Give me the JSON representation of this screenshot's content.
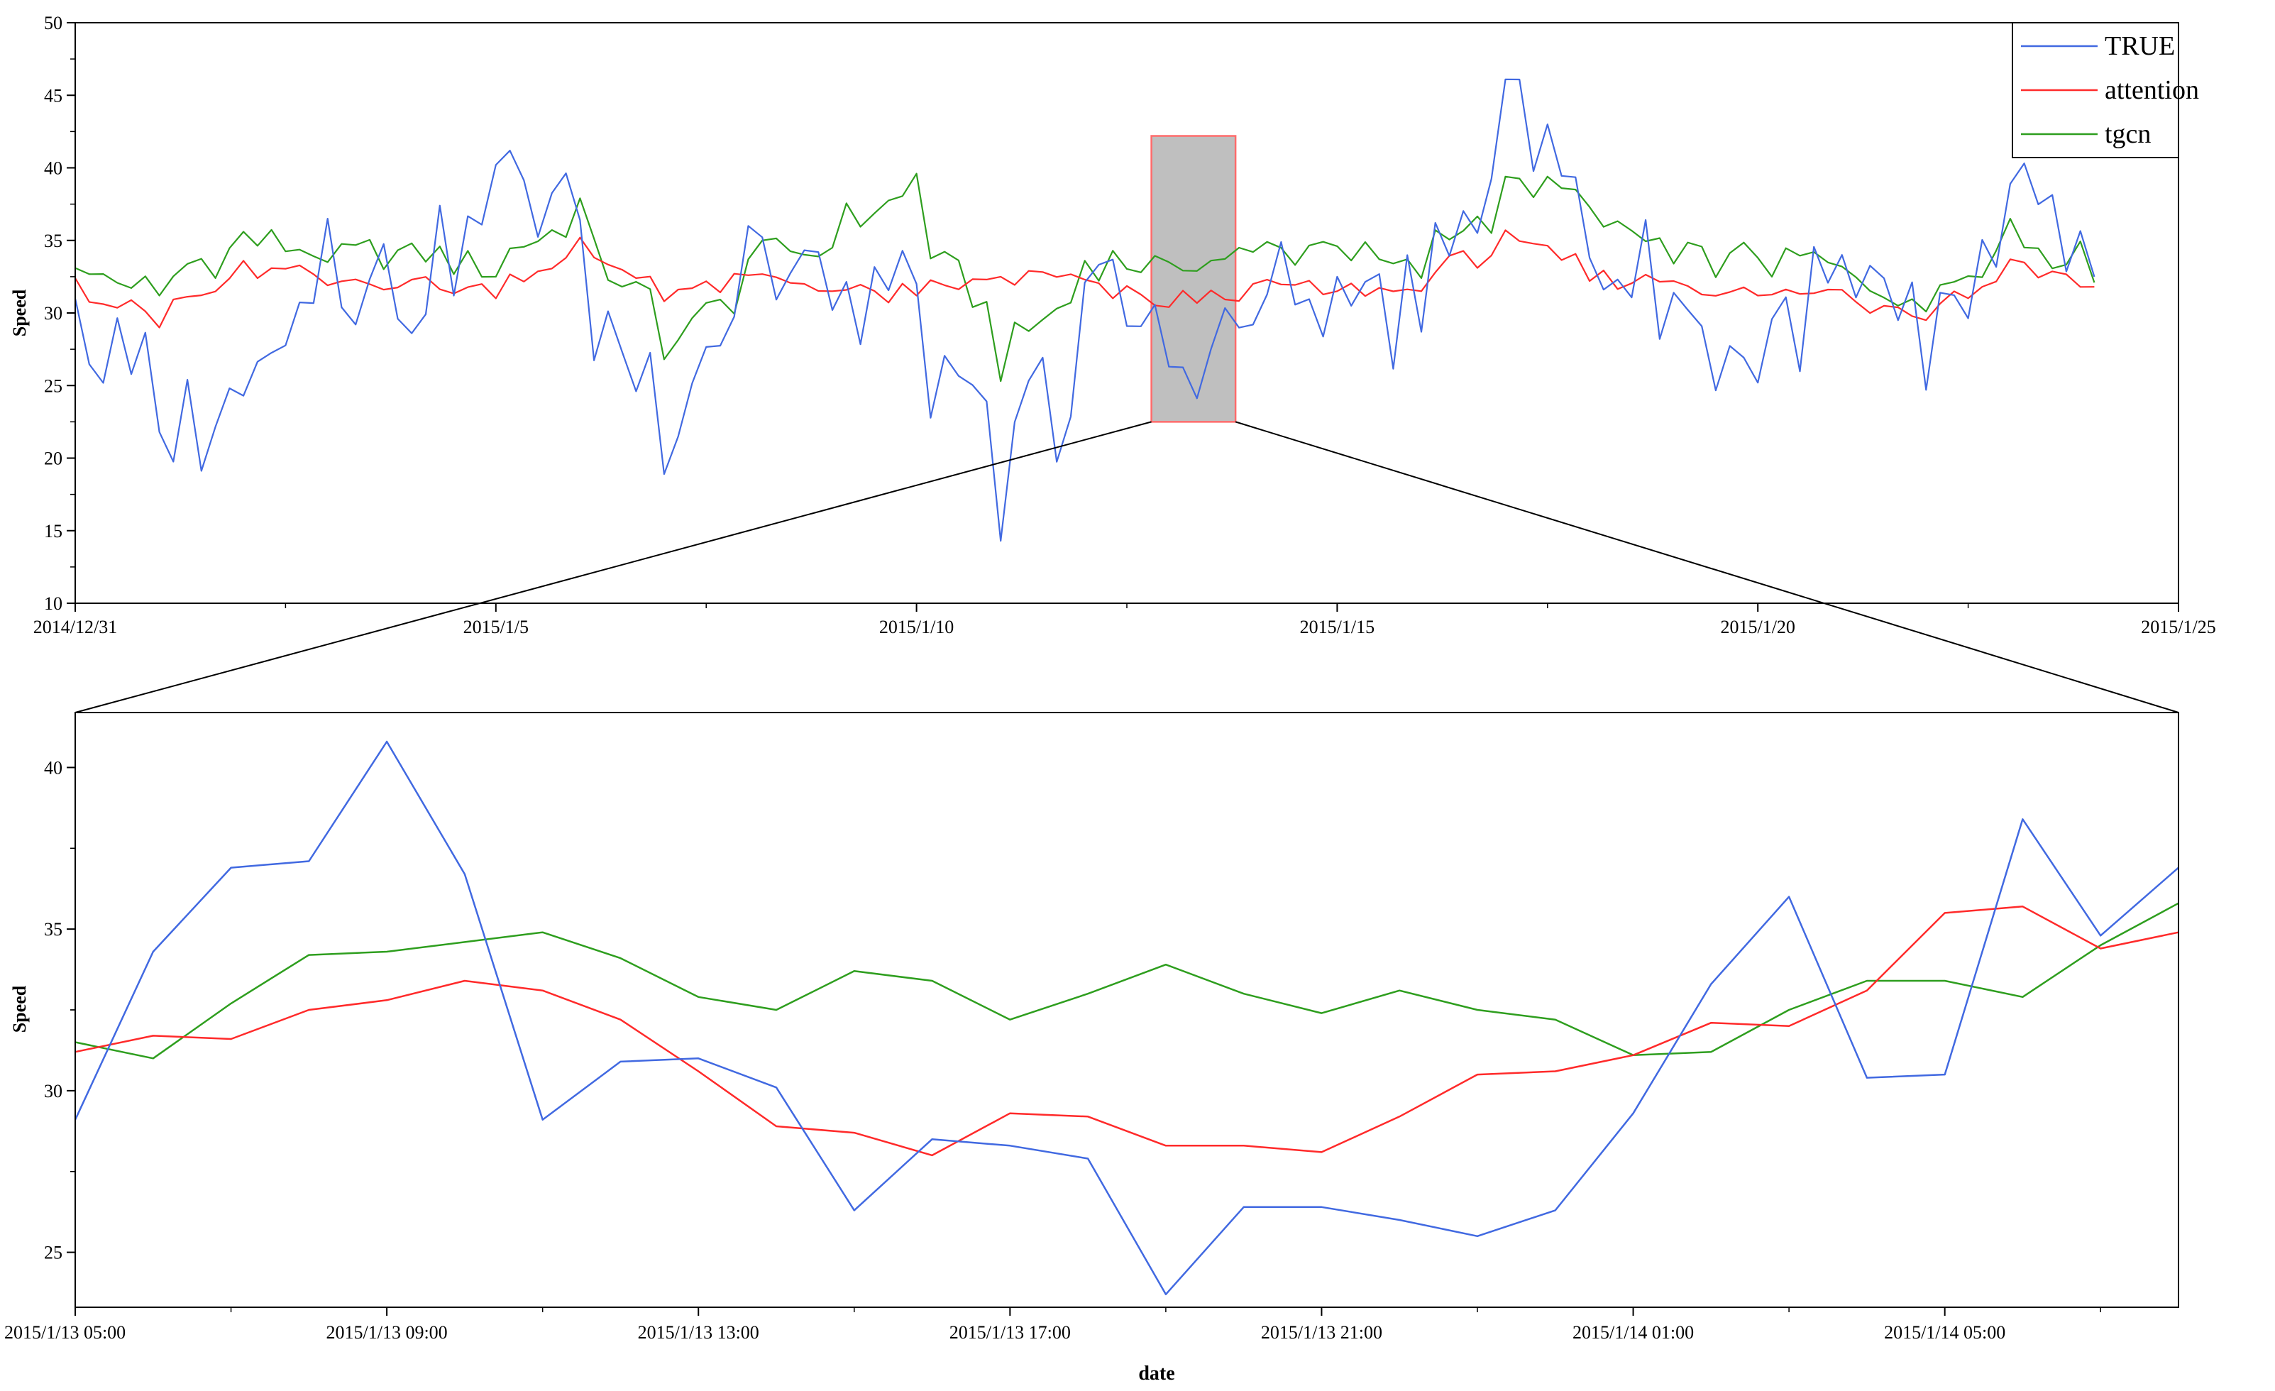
{
  "colors": {
    "TRUE": "#4169e1",
    "attention": "#ff2a2a",
    "tgcn": "#2e9e1e",
    "highlight_fill": "#bfbfbf",
    "highlight_border": "#ff6b6b"
  },
  "chart_data": [
    {
      "id": "overview",
      "type": "line",
      "xlabel": "",
      "ylabel": "Speed",
      "ylim": [
        10,
        50
      ],
      "yticks": [
        "10",
        "15",
        "20",
        "25",
        "30",
        "35",
        "40",
        "45",
        "50"
      ],
      "x_range": [
        "2014/12/31",
        "2015/1/25"
      ],
      "x_tick_labels": [
        "2014/12/31",
        "2015/1/5",
        "2015/1/10",
        "2015/1/15",
        "2015/1/20",
        "2015/1/25"
      ],
      "legend": {
        "position": "top-right",
        "entries": [
          "TRUE",
          "attention",
          "tgcn"
        ]
      },
      "highlight_x_range": [
        "2015/1/12 19:00",
        "2015/1/13 19:00"
      ],
      "highlight_y_range": [
        22.5,
        42.2
      ],
      "series": [
        {
          "name": "TRUE",
          "x": [
            "2014/12/31",
            "2015/1/1",
            "2015/1/2",
            "2015/1/3",
            "2015/1/4",
            "2015/1/5",
            "2015/1/6",
            "2015/1/7",
            "2015/1/8",
            "2015/1/9",
            "2015/1/10",
            "2015/1/11",
            "2015/1/12",
            "2015/1/13",
            "2015/1/14",
            "2015/1/15",
            "2015/1/16",
            "2015/1/17",
            "2015/1/18",
            "2015/1/19",
            "2015/1/20",
            "2015/1/21",
            "2015/1/22",
            "2015/1/23",
            "2015/1/24"
          ],
          "values": [
            31.0,
            21.8,
            24.3,
            36.5,
            28.6,
            40.2,
            36.4,
            18.9,
            36.0,
            30.2,
            32.0,
            14.3,
            32.1,
            26.3,
            29.2,
            32.5,
            28.7,
            46.1,
            33.8,
            31.4,
            25.2,
            34.0,
            24.7,
            38.9,
            32.5
          ]
        },
        {
          "name": "attention",
          "x": [
            "2014/12/31",
            "2015/1/1",
            "2015/1/2",
            "2015/1/3",
            "2015/1/4",
            "2015/1/5",
            "2015/1/6",
            "2015/1/7",
            "2015/1/8",
            "2015/1/9",
            "2015/1/10",
            "2015/1/11",
            "2015/1/12",
            "2015/1/13",
            "2015/1/14",
            "2015/1/15",
            "2015/1/16",
            "2015/1/17",
            "2015/1/18",
            "2015/1/19",
            "2015/1/20",
            "2015/1/21",
            "2015/1/22",
            "2015/1/23",
            "2015/1/24"
          ],
          "values": [
            32.4,
            29.0,
            33.6,
            31.9,
            32.3,
            31.0,
            35.2,
            30.8,
            32.6,
            31.5,
            31.2,
            32.5,
            32.3,
            30.4,
            32.0,
            31.5,
            31.5,
            35.7,
            32.2,
            32.2,
            31.2,
            31.6,
            29.5,
            33.7,
            31.8
          ]
        },
        {
          "name": "tgcn",
          "x": [
            "2014/12/31",
            "2015/1/1",
            "2015/1/2",
            "2015/1/3",
            "2015/1/4",
            "2015/1/5",
            "2015/1/6",
            "2015/1/7",
            "2015/1/8",
            "2015/1/9",
            "2015/1/10",
            "2015/1/11",
            "2015/1/12",
            "2015/1/13",
            "2015/1/14",
            "2015/1/15",
            "2015/1/16",
            "2015/1/17",
            "2015/1/18",
            "2015/1/19",
            "2015/1/20",
            "2015/1/21",
            "2015/1/22",
            "2015/1/23",
            "2015/1/24"
          ],
          "values": [
            33.1,
            31.2,
            35.6,
            33.5,
            34.8,
            32.5,
            37.9,
            26.8,
            33.7,
            34.5,
            39.6,
            25.3,
            33.6,
            33.5,
            34.2,
            34.6,
            32.4,
            39.4,
            37.3,
            33.4,
            33.8,
            33.2,
            30.1,
            36.5,
            32.1
          ]
        }
      ]
    },
    {
      "id": "zoom",
      "type": "line",
      "xlabel": "date",
      "ylabel": "Speed",
      "ylim": [
        23.3,
        41.7
      ],
      "yticks": [
        "25",
        "30",
        "35",
        "40"
      ],
      "x_range": [
        "2015/1/13 05:00",
        "2015/1/14 08:00"
      ],
      "x_tick_labels": [
        "2015/1/13 05:00",
        "2015/1/13 09:00",
        "2015/1/13 13:00",
        "2015/1/13 17:00",
        "2015/1/13 21:00",
        "2015/1/14 01:00",
        "2015/1/14 05:00"
      ],
      "x": [
        "2015/1/13 05:00",
        "2015/1/13 06:00",
        "2015/1/13 07:00",
        "2015/1/13 08:00",
        "2015/1/13 09:00",
        "2015/1/13 10:00",
        "2015/1/13 11:00",
        "2015/1/13 12:00",
        "2015/1/13 13:00",
        "2015/1/13 14:00",
        "2015/1/13 15:00",
        "2015/1/13 16:00",
        "2015/1/13 17:00",
        "2015/1/13 18:00",
        "2015/1/13 19:00",
        "2015/1/13 20:00",
        "2015/1/13 21:00",
        "2015/1/13 22:00",
        "2015/1/13 23:00",
        "2015/1/14 00:00",
        "2015/1/14 01:00",
        "2015/1/14 02:00",
        "2015/1/14 03:00",
        "2015/1/14 04:00",
        "2015/1/14 05:00",
        "2015/1/14 06:00",
        "2015/1/14 07:00",
        "2015/1/14 08:00"
      ],
      "series": [
        {
          "name": "TRUE",
          "values": [
            29.1,
            34.3,
            36.9,
            37.1,
            40.8,
            36.7,
            29.1,
            30.9,
            31.0,
            30.1,
            26.3,
            28.5,
            28.3,
            27.9,
            23.7,
            26.4,
            26.4,
            26.0,
            25.5,
            26.3,
            29.3,
            33.3,
            36.0,
            30.4,
            30.5,
            38.4,
            34.8,
            36.9
          ]
        },
        {
          "name": "attention",
          "values": [
            31.2,
            31.7,
            31.6,
            32.5,
            32.8,
            33.4,
            33.1,
            32.2,
            30.6,
            28.9,
            28.7,
            28.0,
            29.3,
            29.2,
            28.3,
            28.3,
            28.1,
            29.2,
            30.5,
            30.6,
            31.1,
            32.1,
            32.0,
            33.1,
            35.5,
            35.7,
            34.4,
            34.9
          ]
        },
        {
          "name": "tgcn",
          "values": [
            31.5,
            31.0,
            32.7,
            34.2,
            34.3,
            34.6,
            34.9,
            34.1,
            32.9,
            32.5,
            33.7,
            33.4,
            32.2,
            33.0,
            33.9,
            33.0,
            32.4,
            33.1,
            32.5,
            32.2,
            31.1,
            31.2,
            32.5,
            33.4,
            33.4,
            32.9,
            34.5,
            35.8
          ]
        }
      ]
    }
  ]
}
